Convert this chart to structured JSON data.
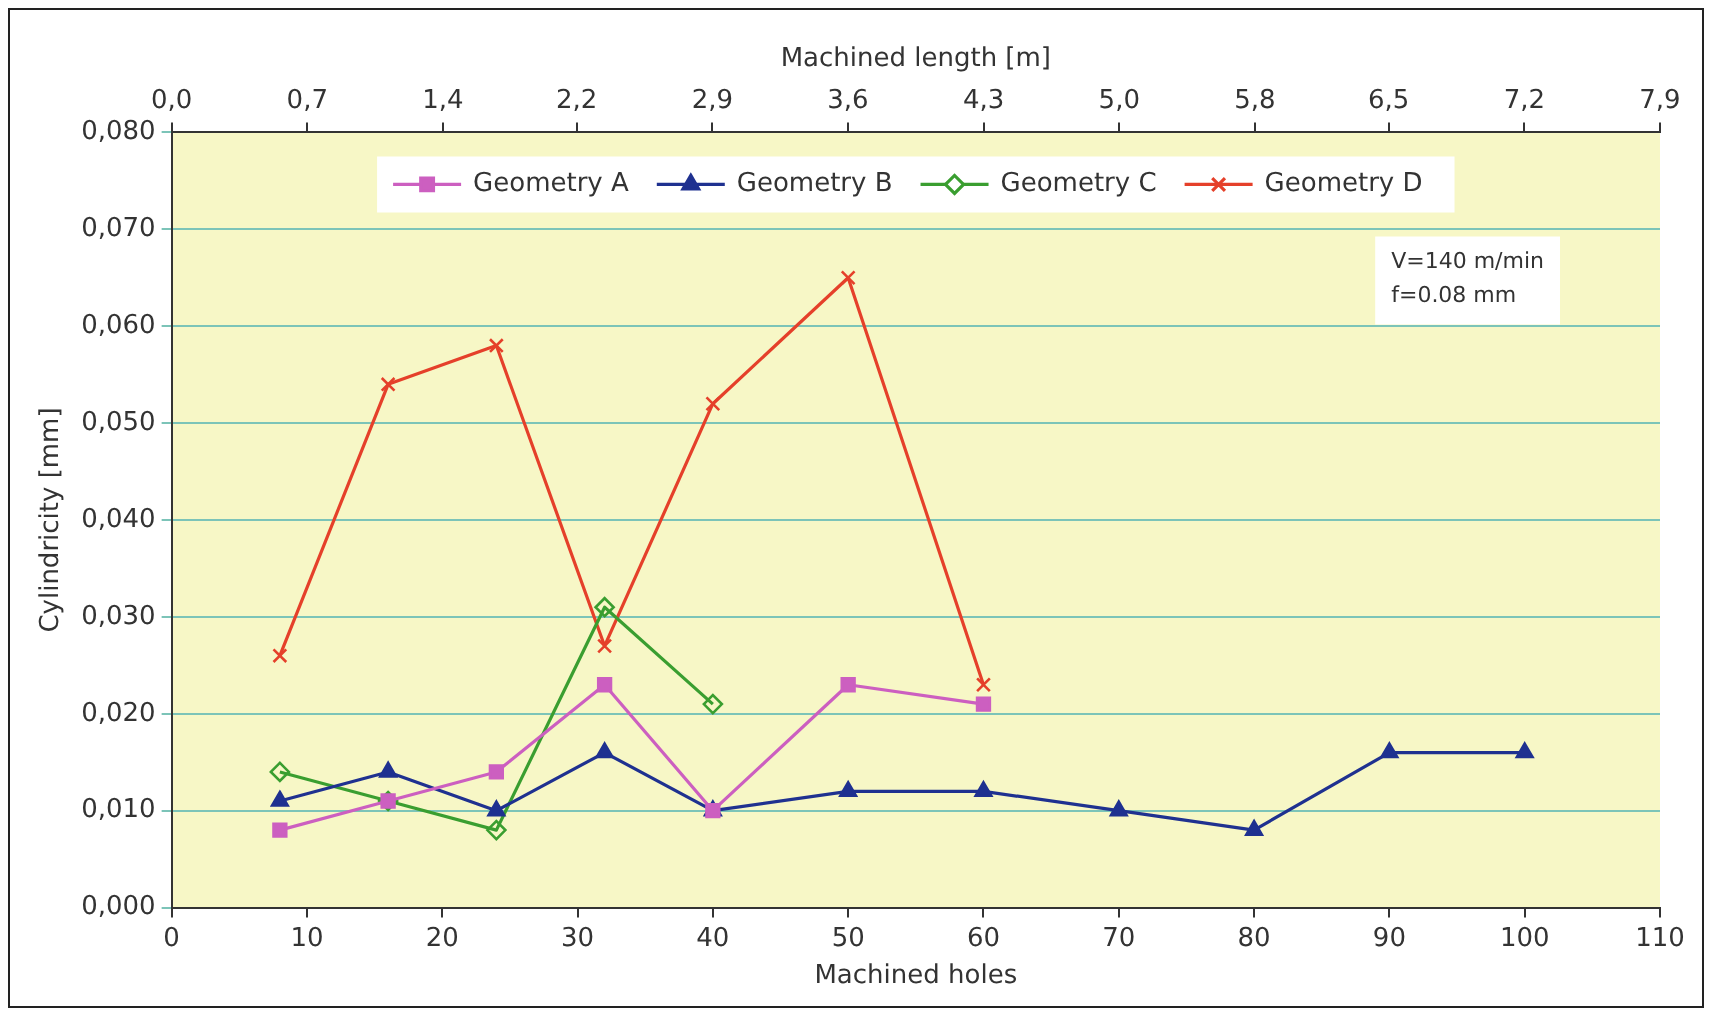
{
  "chart_data": {
    "type": "line",
    "xlabel": "Machined holes",
    "ylabel": "Cylindricity [mm]",
    "x2label": "Machined length [m]",
    "xlim": [
      0,
      110
    ],
    "xticks": [
      0,
      10,
      20,
      30,
      40,
      50,
      60,
      70,
      80,
      90,
      100,
      110
    ],
    "x2lim": [
      0,
      7.9
    ],
    "x2ticks": [
      {
        "value": 0,
        "label": "0,0"
      },
      {
        "value": 0.72,
        "label": "0,7"
      },
      {
        "value": 1.44,
        "label": "1,4"
      },
      {
        "value": 2.15,
        "label": "2,2"
      },
      {
        "value": 2.87,
        "label": "2,9"
      },
      {
        "value": 3.59,
        "label": "3,6"
      },
      {
        "value": 4.31,
        "label": "4,3"
      },
      {
        "value": 5.03,
        "label": "5,0"
      },
      {
        "value": 5.75,
        "label": "5,8"
      },
      {
        "value": 6.46,
        "label": "6,5"
      },
      {
        "value": 7.18,
        "label": "7,2"
      },
      {
        "value": 7.9,
        "label": "7,9"
      }
    ],
    "ylim": [
      0,
      0.08
    ],
    "yticks": [
      {
        "value": 0,
        "label": "0,000"
      },
      {
        "value": 0.01,
        "label": "0,010"
      },
      {
        "value": 0.02,
        "label": "0,020"
      },
      {
        "value": 0.03,
        "label": "0,030"
      },
      {
        "value": 0.04,
        "label": "0,040"
      },
      {
        "value": 0.05,
        "label": "0,050"
      },
      {
        "value": 0.06,
        "label": "0,060"
      },
      {
        "value": 0.07,
        "label": "0,070"
      },
      {
        "value": 0.08,
        "label": "0,080"
      }
    ],
    "grid": "y",
    "legend": "top",
    "annotations": [
      "V=140 m/min",
      "f=0.08 mm"
    ],
    "series": [
      {
        "name": "Geometry A",
        "color": "#cc5fc0",
        "marker": "square",
        "x": [
          8,
          16,
          24,
          32,
          40,
          50,
          60
        ],
        "values": [
          0.008,
          0.011,
          0.014,
          0.023,
          0.01,
          0.023,
          0.021
        ]
      },
      {
        "name": "Geometry B",
        "color": "#1f3190",
        "marker": "triangle",
        "x": [
          8,
          16,
          24,
          32,
          40,
          50,
          60,
          70,
          80,
          90,
          100
        ],
        "values": [
          0.011,
          0.014,
          0.01,
          0.016,
          0.01,
          0.012,
          0.012,
          0.01,
          0.008,
          0.016,
          0.016
        ]
      },
      {
        "name": "Geometry C",
        "color": "#3a9e30",
        "marker": "diamond",
        "x": [
          8,
          16,
          24,
          32,
          40
        ],
        "values": [
          0.014,
          0.011,
          0.008,
          0.031,
          0.021
        ]
      },
      {
        "name": "Geometry D",
        "color": "#e5402a",
        "marker": "cross",
        "x": [
          8,
          16,
          24,
          32,
          40,
          50,
          60
        ],
        "values": [
          0.026,
          0.054,
          0.058,
          0.027,
          0.052,
          0.065,
          0.023
        ]
      }
    ]
  }
}
